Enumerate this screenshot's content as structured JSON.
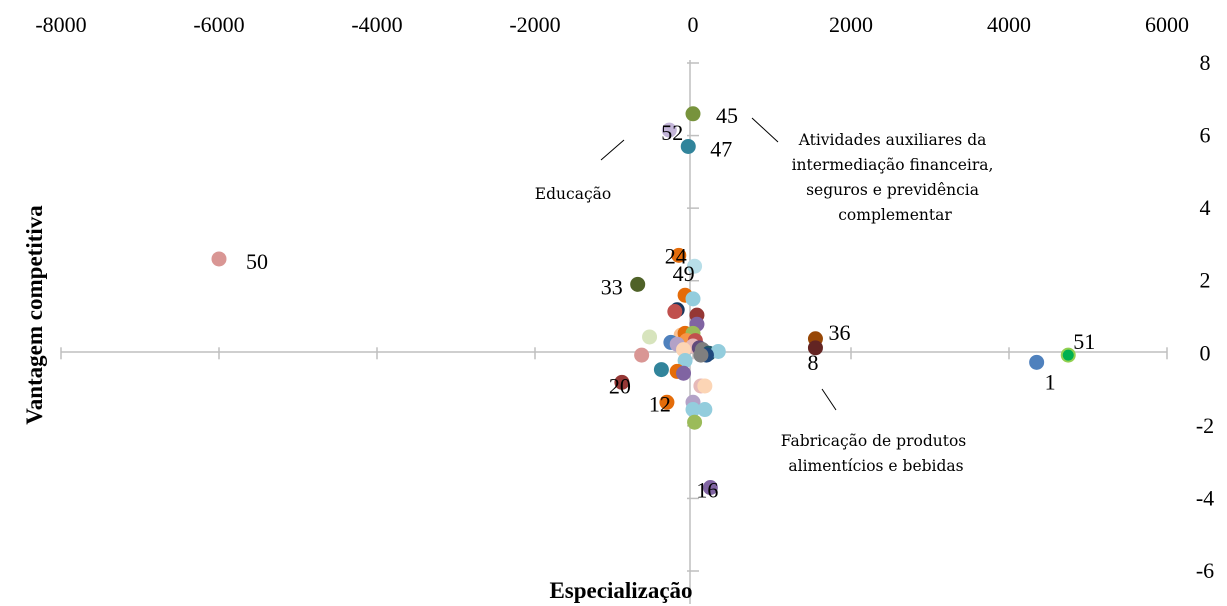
{
  "chart_data": {
    "type": "scatter",
    "xlabel": "Especialização",
    "ylabel": "Vantagem competitiva",
    "xlim": [
      -8000,
      6000
    ],
    "ylim": [
      -6,
      8
    ],
    "xticks": [
      "-8000",
      "-6000",
      "-4000",
      "-2000",
      "0",
      "2000",
      "4000",
      "6000"
    ],
    "yticks": [
      "8",
      "6",
      "4",
      "2",
      "0",
      "-2",
      "-4",
      "-6"
    ],
    "grid": false,
    "points": [
      {
        "x": -6000,
        "y": 2.6,
        "color": "#d99694",
        "label": "50"
      },
      {
        "x": 0,
        "y": 6.6,
        "color": "#77933c",
        "label": "45"
      },
      {
        "x": -300,
        "y": 6.15,
        "color": "#c3b5d8",
        "label": "52"
      },
      {
        "x": -60,
        "y": 5.7,
        "color": "#31849b",
        "label": "47"
      },
      {
        "x": -180,
        "y": 2.7,
        "color": "#e46c0a",
        "label": "24"
      },
      {
        "x": 20,
        "y": 2.4,
        "color": "#b7dee8",
        "label": "49"
      },
      {
        "x": -700,
        "y": 1.9,
        "color": "#4f6228",
        "label": "33"
      },
      {
        "x": 1550,
        "y": 0.4,
        "color": "#984807",
        "label": "36"
      },
      {
        "x": 1550,
        "y": 0.15,
        "color": "#632523",
        "label": "8"
      },
      {
        "x": 4750,
        "y": -0.05,
        "color": "#00b050",
        "label": "51"
      },
      {
        "x": 4350,
        "y": -0.25,
        "color": "#4f81bd",
        "label": "1"
      },
      {
        "x": -900,
        "y": -0.8,
        "color": "#953735",
        "label": "20"
      },
      {
        "x": -330,
        "y": -1.35,
        "color": "#e46c0a",
        "label": "12"
      },
      {
        "x": 220,
        "y": -3.7,
        "color": "#8064a2",
        "label": "16"
      },
      {
        "x": -100,
        "y": 1.6,
        "color": "#e46c0a",
        "label": ""
      },
      {
        "x": 0,
        "y": 1.5,
        "color": "#93cddd",
        "label": ""
      },
      {
        "x": -200,
        "y": 1.2,
        "color": "#17375e",
        "label": ""
      },
      {
        "x": -230,
        "y": 1.15,
        "color": "#c0504d",
        "label": ""
      },
      {
        "x": 50,
        "y": 1.05,
        "color": "#953735",
        "label": ""
      },
      {
        "x": 50,
        "y": 0.8,
        "color": "#8064a2",
        "label": ""
      },
      {
        "x": -150,
        "y": 0.5,
        "color": "#fac090",
        "label": ""
      },
      {
        "x": -100,
        "y": 0.55,
        "color": "#e46c0a",
        "label": ""
      },
      {
        "x": 0,
        "y": 0.55,
        "color": "#9bbb59",
        "label": ""
      },
      {
        "x": -550,
        "y": 0.45,
        "color": "#d7e4bd",
        "label": ""
      },
      {
        "x": -80,
        "y": 0.35,
        "color": "#f79646",
        "label": ""
      },
      {
        "x": 30,
        "y": 0.35,
        "color": "#c0504d",
        "label": ""
      },
      {
        "x": -280,
        "y": 0.3,
        "color": "#4f81bd",
        "label": ""
      },
      {
        "x": -200,
        "y": 0.25,
        "color": "#b3a2c7",
        "label": ""
      },
      {
        "x": 0,
        "y": 0.2,
        "color": "#e6b9b8",
        "label": ""
      },
      {
        "x": 80,
        "y": 0.15,
        "color": "#604a7b",
        "label": ""
      },
      {
        "x": 120,
        "y": 0.1,
        "color": "#7f7f7f",
        "label": ""
      },
      {
        "x": -120,
        "y": 0.1,
        "color": "#fcd5b5",
        "label": ""
      },
      {
        "x": 200,
        "y": 0.0,
        "color": "#215968",
        "label": ""
      },
      {
        "x": 320,
        "y": 0.05,
        "color": "#93cddd",
        "label": ""
      },
      {
        "x": 170,
        "y": -0.05,
        "color": "#1f497d",
        "label": ""
      },
      {
        "x": 100,
        "y": -0.05,
        "color": "#7f7f7f",
        "label": ""
      },
      {
        "x": -650,
        "y": -0.05,
        "color": "#d99694",
        "label": ""
      },
      {
        "x": -100,
        "y": -0.2,
        "color": "#93cddd",
        "label": ""
      },
      {
        "x": -400,
        "y": -0.45,
        "color": "#31849b",
        "label": ""
      },
      {
        "x": -200,
        "y": -0.5,
        "color": "#e46c0a",
        "label": ""
      },
      {
        "x": -120,
        "y": -0.55,
        "color": "#8064a2",
        "label": ""
      },
      {
        "x": 100,
        "y": -0.9,
        "color": "#e6b9b8",
        "label": ""
      },
      {
        "x": 150,
        "y": -0.9,
        "color": "#fcd5b5",
        "label": ""
      },
      {
        "x": 0,
        "y": -1.35,
        "color": "#b3a2c7",
        "label": ""
      },
      {
        "x": 0,
        "y": -1.55,
        "color": "#93cddd",
        "label": ""
      },
      {
        "x": 150,
        "y": -1.55,
        "color": "#93cddd",
        "label": ""
      },
      {
        "x": 20,
        "y": -1.9,
        "color": "#9bbb59",
        "label": ""
      }
    ],
    "annotations": [
      {
        "text": "Educação"
      },
      {
        "text": "Atividades auxiliares da intermediação financeira, seguros e previdência complementar"
      },
      {
        "text": "Fabricação de produtos alimentícios e bebidas"
      }
    ]
  }
}
